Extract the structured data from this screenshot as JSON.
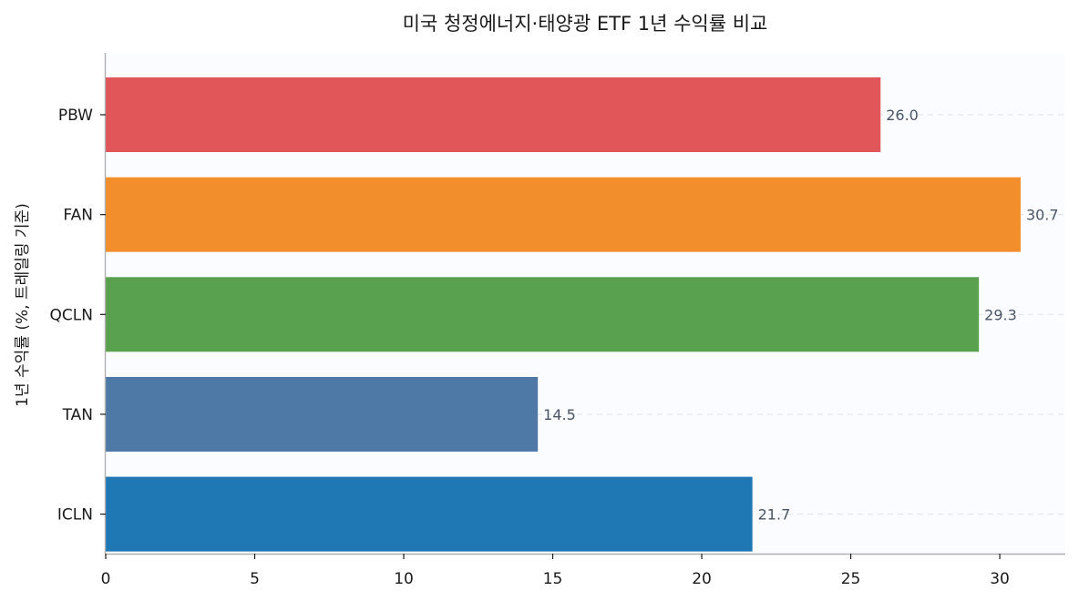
{
  "chart_data": {
    "type": "bar",
    "orientation": "horizontal",
    "title": "미국 청정에너지·태양광 ETF 1년 수익률 비교",
    "xlabel": "",
    "ylabel": "1년 수익률 (%, 트레일링 기준)",
    "categories": [
      "PBW",
      "FAN",
      "QCLN",
      "TAN",
      "ICLN"
    ],
    "values": [
      26.0,
      30.7,
      29.3,
      14.5,
      21.7
    ],
    "colors": [
      "#e15759",
      "#f28e2b",
      "#59a14f",
      "#4e79a7",
      "#1f77b4"
    ],
    "xlim": [
      0,
      32.2
    ],
    "xticks": [
      0,
      5,
      10,
      15,
      20,
      25,
      30
    ],
    "grid": true,
    "legend": "none"
  }
}
